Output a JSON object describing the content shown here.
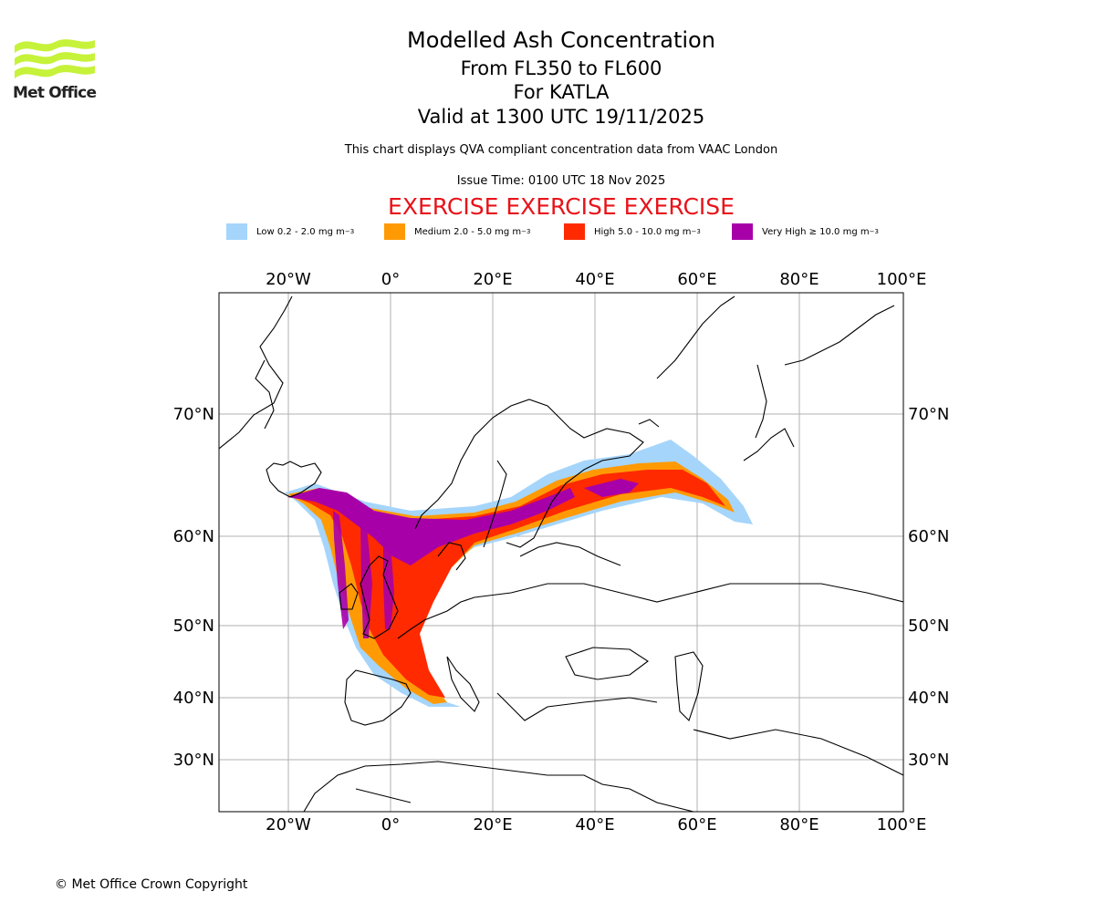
{
  "logo": {
    "text": "Met Office",
    "icon": "met-office-wave-logo",
    "color": "#c6f23a"
  },
  "title": {
    "line1": "Modelled Ash Concentration",
    "line2": "From FL350 to FL600",
    "line3": "For KATLA",
    "line4": "Valid at 1300 UTC 19/11/2025"
  },
  "description": "This chart displays QVA compliant concentration data from VAAC London",
  "issue_time": "Issue Time: 0100 UTC 18 Nov 2025",
  "exercise_banner": "EXERCISE EXERCISE EXERCISE",
  "legend": [
    {
      "label": "Low 0.2 - 2.0 mg m",
      "sup": "−3",
      "color": "#a5d5fb"
    },
    {
      "label": "Medium 2.0 - 5.0 mg m",
      "sup": "−3",
      "color": "#ff9a05"
    },
    {
      "label": "High 5.0 - 10.0 mg m",
      "sup": "−3",
      "color": "#ff2a00"
    },
    {
      "label": "Very High ≥ 10.0 mg m",
      "sup": "−3",
      "color": "#a800a8"
    }
  ],
  "map": {
    "lon_ticks": [
      "20°W",
      "0°",
      "20°E",
      "40°E",
      "60°E",
      "80°E",
      "100°E"
    ],
    "lat_ticks": [
      "70°N",
      "60°N",
      "50°N",
      "40°N",
      "30°N"
    ],
    "gridlines": true,
    "source_volcano": "KATLA"
  },
  "copyright": "© Met Office Crown Copyright"
}
